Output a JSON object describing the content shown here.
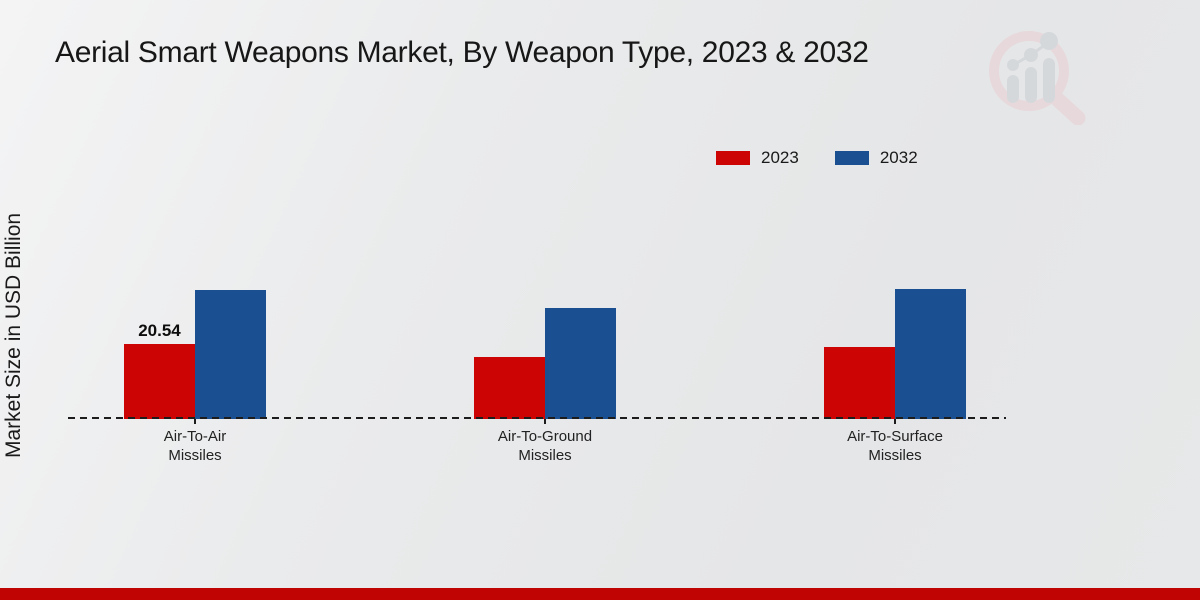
{
  "chart_data": {
    "type": "bar",
    "title": "Aerial Smart Weapons Market, By Weapon Type, 2023 & 2032",
    "ylabel": "Market Size in USD Billion",
    "xlabel": "",
    "categories": [
      "Air-To-Air\nMissiles",
      "Air-To-Ground\nMissiles",
      "Air-To-Surface\nMissiles"
    ],
    "series": [
      {
        "name": "2023",
        "color": "#cc0404",
        "values": [
          20.54,
          16.9,
          19.7
        ]
      },
      {
        "name": "2032",
        "color": "#1a4f91",
        "values": [
          35.2,
          30.4,
          35.5
        ]
      }
    ],
    "annotations": [
      {
        "text": "20.54",
        "series_index": 0,
        "category_index": 0
      }
    ],
    "legend_position": "top-right",
    "grid": false,
    "baseline_style": "dashed",
    "yticks_visible": false
  },
  "branding": {
    "watermark_icon": "magnifier-bar-chart-icon",
    "accent_bar_color": "#c00404",
    "watermark_pink": "#e9cdd2",
    "watermark_gray": "#c9cdd3"
  }
}
